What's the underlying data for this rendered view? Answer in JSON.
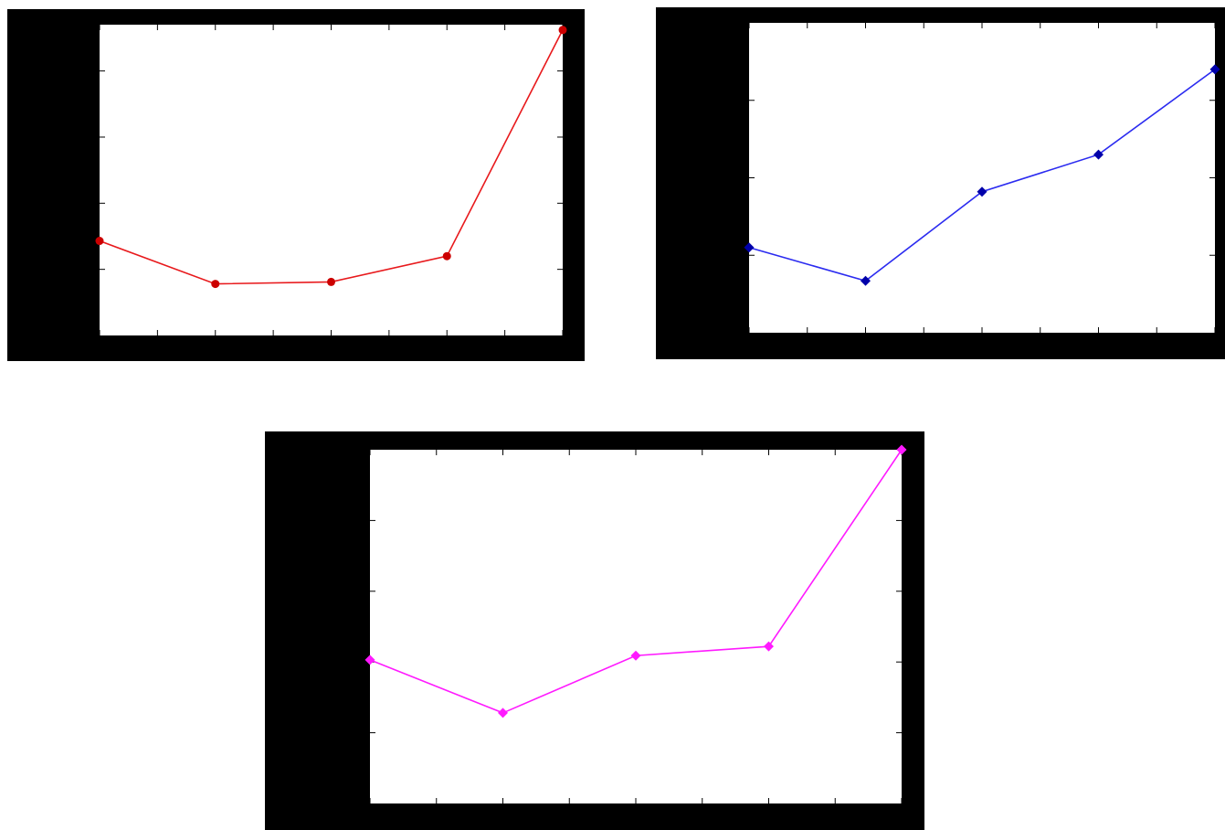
{
  "chart_data": [
    {
      "type": "line",
      "color": "#e8191c",
      "marker": "circle",
      "marker_color": "#cc0000",
      "x": [
        0,
        1,
        2,
        3,
        4
      ],
      "values": [
        1.43,
        0.78,
        0.81,
        1.2,
        4.62
      ],
      "xlim": [
        0,
        4
      ],
      "ylim": [
        0,
        4.7
      ],
      "xticks": [
        0,
        0.5,
        1,
        1.5,
        2,
        2.5,
        3,
        3.5,
        4
      ],
      "yticks": [
        1,
        2,
        3,
        4
      ],
      "grid": false
    },
    {
      "type": "line",
      "color": "#2b2bf0",
      "marker": "diamond",
      "marker_color": "#0000aa",
      "x": [
        0,
        1,
        2,
        3,
        4
      ],
      "values": [
        1.1,
        0.67,
        1.82,
        2.3,
        3.4
      ],
      "xlim": [
        0,
        4
      ],
      "ylim": [
        0,
        4
      ],
      "xticks": [
        0,
        0.5,
        1,
        1.5,
        2,
        2.5,
        3,
        3.5,
        4
      ],
      "yticks": [
        1,
        2,
        3
      ],
      "grid": false
    },
    {
      "type": "line",
      "color": "#ff1aff",
      "marker": "diamond",
      "marker_color": "#ff1aff",
      "x": [
        0,
        1,
        2,
        3,
        4
      ],
      "values": [
        2.03,
        1.28,
        2.09,
        2.22,
        5.0
      ],
      "xlim": [
        0,
        4
      ],
      "ylim": [
        0,
        5
      ],
      "xticks": [
        0,
        0.5,
        1,
        1.5,
        2,
        2.5,
        3,
        3.5,
        4
      ],
      "yticks": [
        1,
        2,
        3,
        4
      ],
      "grid": false
    }
  ]
}
